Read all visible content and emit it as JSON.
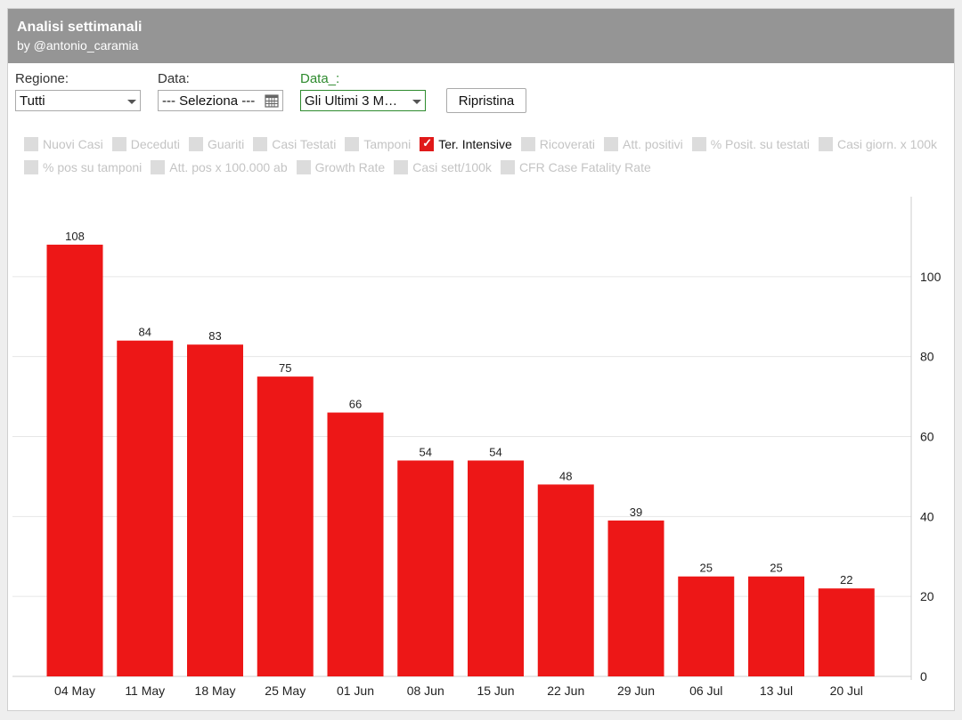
{
  "header": {
    "title": "Analisi settimanali",
    "subtitle": "by @antonio_caramia"
  },
  "filters": {
    "regione_label": "Regione:",
    "regione_value": "Tutti",
    "data_label": "Data:",
    "data_value": "--- Seleziona ---",
    "data2_label": "Data_:",
    "data2_value": "Gli Ultimi 3 M…",
    "reset_label": "Ripristina"
  },
  "metrics_row1": [
    {
      "label": "Nuovi Casi",
      "checked": false
    },
    {
      "label": "Deceduti",
      "checked": false
    },
    {
      "label": "Guariti",
      "checked": false
    },
    {
      "label": "Casi Testati",
      "checked": false
    },
    {
      "label": "Tamponi",
      "checked": false
    },
    {
      "label": "Ter. Intensive",
      "checked": true
    },
    {
      "label": "Ricoverati",
      "checked": false
    },
    {
      "label": "Att. positivi",
      "checked": false
    },
    {
      "label": "% Posit. su testati",
      "checked": false
    },
    {
      "label": "Casi giorn. x 100k",
      "checked": false
    }
  ],
  "metrics_row2": [
    {
      "label": "% pos su tamponi",
      "checked": false
    },
    {
      "label": "Att. pos x 100.000 ab",
      "checked": false
    },
    {
      "label": "Growth Rate",
      "checked": false
    },
    {
      "label": "Casi sett/100k",
      "checked": false
    },
    {
      "label": "CFR Case Fatality Rate",
      "checked": false
    }
  ],
  "colors": {
    "bar": "#ed1717",
    "title_bg": "#959595",
    "active_label": "#2e8b2e"
  },
  "chart_data": {
    "type": "bar",
    "categories": [
      "04 May",
      "11 May",
      "18 May",
      "25 May",
      "01 Jun",
      "08 Jun",
      "15 Jun",
      "22 Jun",
      "29 Jun",
      "06 Jul",
      "13 Jul",
      "20 Jul"
    ],
    "values": [
      108,
      84,
      83,
      75,
      66,
      54,
      54,
      48,
      39,
      25,
      25,
      22
    ],
    "ylim": [
      0,
      120
    ],
    "yticks": [
      0,
      20,
      40,
      60,
      80,
      100
    ],
    "y_axis_side": "right",
    "grid": true,
    "data_labels": true
  }
}
